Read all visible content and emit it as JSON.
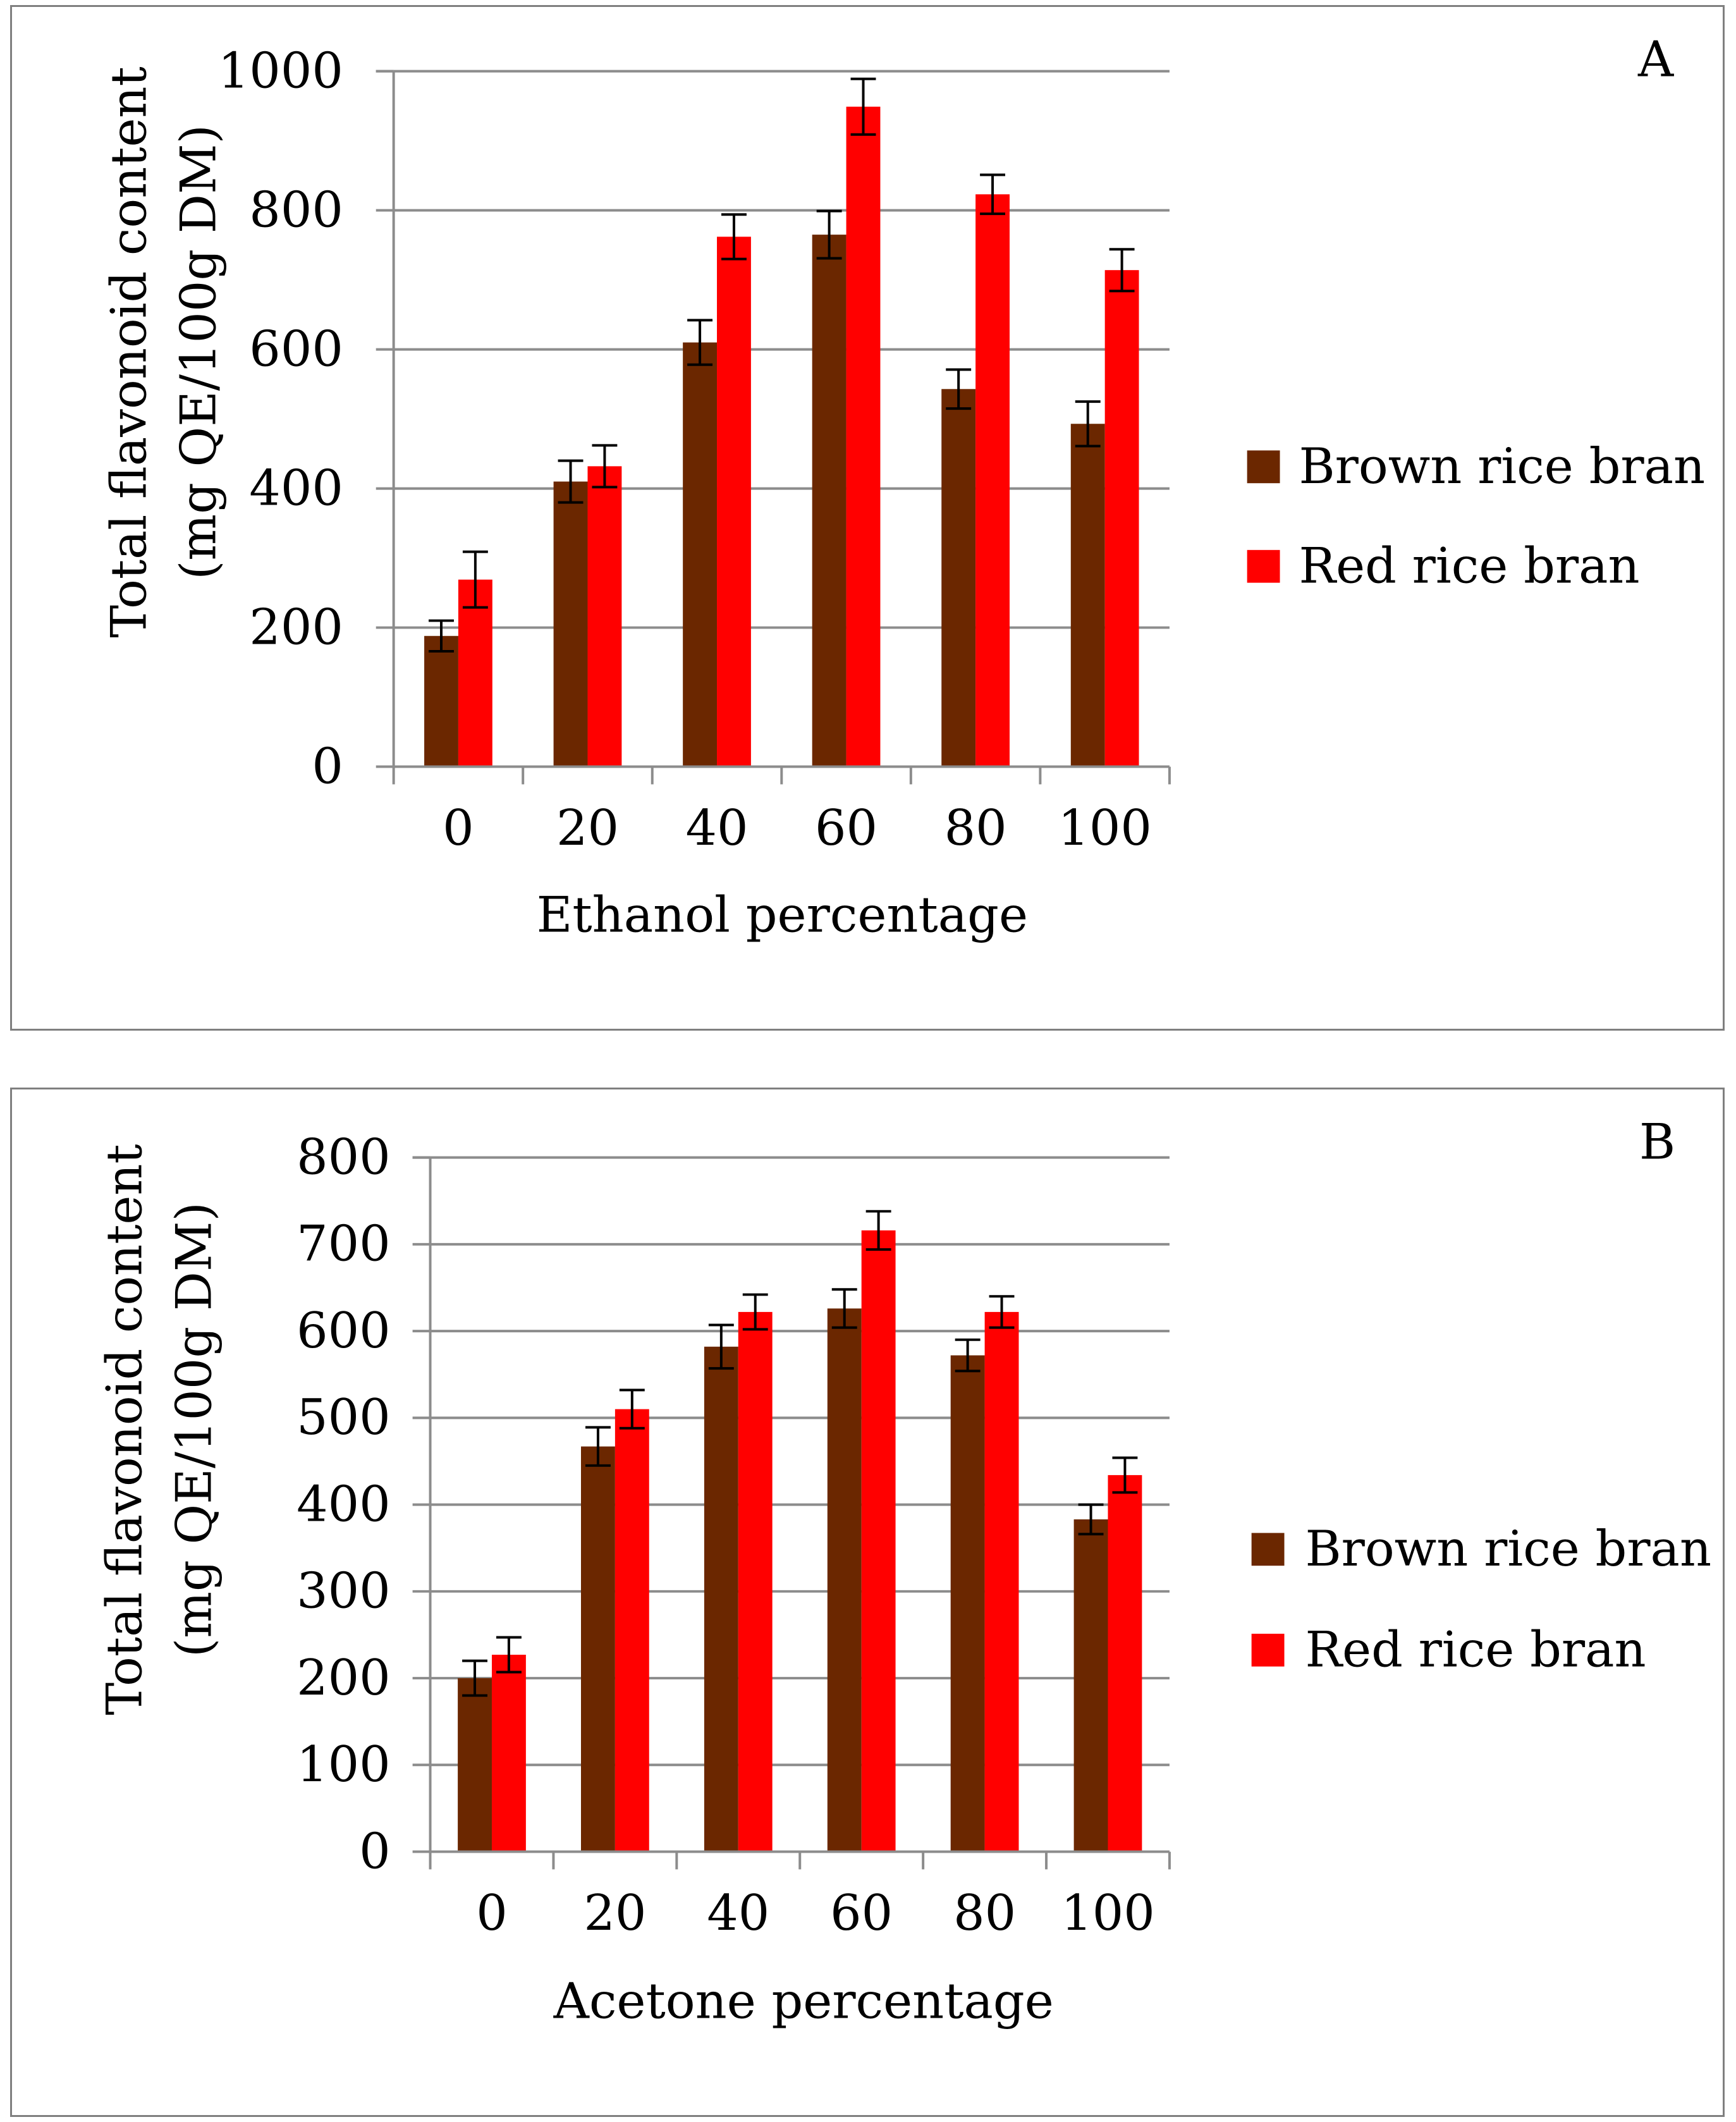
{
  "chart_data": [
    {
      "type": "bar",
      "panel_label": "A",
      "xlabel": "Ethanol percentage",
      "ylabel_line1": "Total flavonoid content",
      "ylabel_line2": "(mg QE/100g DM)",
      "categories": [
        "0",
        "20",
        "40",
        "60",
        "80",
        "100"
      ],
      "ylim": [
        0,
        1000
      ],
      "yticks": [
        0,
        200,
        400,
        600,
        800,
        1000
      ],
      "grid": true,
      "legend_position": "right",
      "series": [
        {
          "name": "Brown rice bran",
          "color": "#6b2700",
          "values": [
            188,
            410,
            610,
            765,
            543,
            493
          ],
          "errors": [
            22,
            30,
            32,
            34,
            28,
            32
          ]
        },
        {
          "name": "Red rice bran",
          "color": "#ff0000",
          "values": [
            269,
            432,
            762,
            949,
            823,
            714
          ],
          "errors": [
            40,
            30,
            32,
            40,
            28,
            30
          ]
        }
      ]
    },
    {
      "type": "bar",
      "panel_label": "B",
      "xlabel": "Acetone percentage",
      "ylabel_line1": "Total flavonoid content",
      "ylabel_line2": "(mg QE/100g DM)",
      "categories": [
        "0",
        "20",
        "40",
        "60",
        "80",
        "100"
      ],
      "ylim": [
        0,
        800
      ],
      "yticks": [
        0,
        100,
        200,
        300,
        400,
        500,
        600,
        700,
        800
      ],
      "grid": true,
      "legend_position": "right",
      "series": [
        {
          "name": "Brown rice bran",
          "color": "#6b2700",
          "values": [
            200,
            467,
            582,
            626,
            572,
            383
          ],
          "errors": [
            20,
            22,
            25,
            22,
            18,
            17
          ]
        },
        {
          "name": "Red rice bran",
          "color": "#ff0000",
          "values": [
            227,
            510,
            622,
            716,
            622,
            434
          ],
          "errors": [
            20,
            22,
            20,
            22,
            18,
            20
          ]
        }
      ]
    }
  ]
}
